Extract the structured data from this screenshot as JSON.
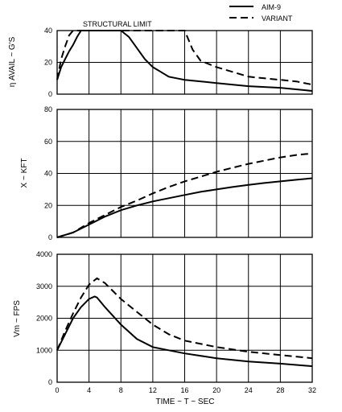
{
  "legend": {
    "entries": [
      {
        "name": "AIM-9",
        "style": "solid"
      },
      {
        "name": "VARIANT",
        "style": "dashed"
      }
    ],
    "placement": "top-right"
  },
  "shared_x": {
    "label": "TIME ~ T ~ SEC",
    "lim": [
      0,
      32
    ],
    "ticks": [
      0,
      4,
      8,
      12,
      16,
      20,
      24,
      28,
      32
    ]
  },
  "chart_data": [
    {
      "type": "line",
      "ylabel": "η AVAIL ~ G'S",
      "ylim": [
        0,
        40
      ],
      "yticks": [
        0,
        20,
        40
      ],
      "grid": true,
      "annotation": "STRUCTURAL LIMIT",
      "series": [
        {
          "name": "AIM-9",
          "style": "solid",
          "x": [
            0,
            0.5,
            1,
            1.5,
            2,
            2.5,
            3,
            3.5,
            8,
            9,
            10,
            11,
            12,
            13,
            14,
            15,
            16,
            20,
            24,
            28,
            32
          ],
          "y": [
            9,
            17,
            22,
            27,
            31,
            36,
            40,
            40,
            40,
            36,
            29,
            22,
            17,
            14,
            11,
            10,
            9,
            7,
            5,
            4,
            2
          ]
        },
        {
          "name": "VARIANT",
          "style": "dashed",
          "x": [
            0,
            0.5,
            1,
            1.5,
            2,
            2.5,
            16,
            17,
            18,
            20,
            22,
            24,
            26,
            28,
            30,
            32
          ],
          "y": [
            9,
            22,
            30,
            37,
            40,
            40,
            40,
            28,
            21,
            17,
            14,
            11,
            10,
            9,
            8,
            6
          ]
        }
      ]
    },
    {
      "type": "line",
      "ylabel": "X ~ KFT",
      "ylim": [
        0,
        80
      ],
      "yticks": [
        0,
        20,
        40,
        60,
        80
      ],
      "grid": true,
      "series": [
        {
          "name": "AIM-9",
          "style": "solid",
          "x": [
            0,
            2,
            4,
            6,
            8,
            10,
            12,
            14,
            16,
            18,
            20,
            22,
            24,
            26,
            28,
            30,
            32
          ],
          "y": [
            0,
            3,
            8,
            13,
            17,
            20,
            22.5,
            24.5,
            26.5,
            28.5,
            30,
            31.5,
            32.8,
            34,
            35,
            36,
            37
          ]
        },
        {
          "name": "VARIANT",
          "style": "dashed",
          "x": [
            0,
            2,
            4,
            6,
            8,
            10,
            12,
            14,
            16,
            18,
            20,
            22,
            24,
            26,
            28,
            30,
            32
          ],
          "y": [
            0,
            3,
            9,
            14,
            19,
            23,
            27.5,
            31.5,
            35,
            38,
            41,
            43.5,
            46,
            48,
            50,
            51.5,
            52.5
          ]
        }
      ]
    },
    {
      "type": "line",
      "ylabel": "Vm ~ FPS",
      "ylim": [
        0,
        4000
      ],
      "yticks": [
        0,
        1000,
        2000,
        3000,
        4000
      ],
      "grid": true,
      "series": [
        {
          "name": "AIM-9",
          "style": "solid",
          "x": [
            0,
            1,
            2,
            3,
            4,
            4.7,
            5,
            6,
            8,
            10,
            12,
            14,
            16,
            20,
            24,
            28,
            32
          ],
          "y": [
            1000,
            1500,
            2000,
            2350,
            2600,
            2680,
            2650,
            2350,
            1800,
            1350,
            1100,
            1000,
            900,
            750,
            650,
            580,
            500
          ]
        },
        {
          "name": "VARIANT",
          "style": "dashed",
          "x": [
            0,
            1,
            2,
            3,
            4,
            5,
            6,
            8,
            10,
            12,
            14,
            16,
            20,
            24,
            28,
            32
          ],
          "y": [
            1000,
            1600,
            2150,
            2650,
            3050,
            3250,
            3100,
            2600,
            2200,
            1800,
            1500,
            1300,
            1100,
            950,
            850,
            750
          ]
        }
      ]
    }
  ]
}
